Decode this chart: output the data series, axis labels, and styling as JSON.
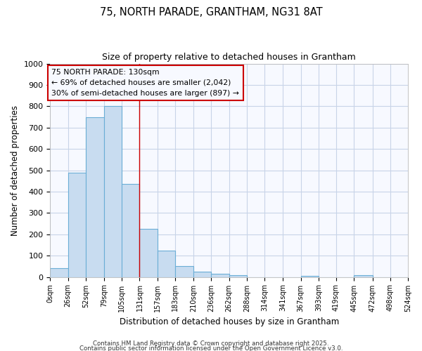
{
  "title_line1": "75, NORTH PARADE, GRANTHAM, NG31 8AT",
  "title_line2": "Size of property relative to detached houses in Grantham",
  "xlabel": "Distribution of detached houses by size in Grantham",
  "ylabel": "Number of detached properties",
  "bin_edges": [
    0,
    26,
    52,
    79,
    105,
    131,
    157,
    183,
    210,
    236,
    262,
    288,
    314,
    341,
    367,
    393,
    419,
    445,
    472,
    498,
    524
  ],
  "bar_heights": [
    40,
    490,
    750,
    800,
    435,
    225,
    125,
    50,
    25,
    15,
    10,
    0,
    0,
    0,
    5,
    0,
    0,
    10,
    0,
    0
  ],
  "bar_facecolor": "#c8dcf0",
  "bar_edgecolor": "#6baed6",
  "property_line_x": 131,
  "property_line_color": "#cc0000",
  "ylim": [
    0,
    1000
  ],
  "yticks": [
    0,
    100,
    200,
    300,
    400,
    500,
    600,
    700,
    800,
    900,
    1000
  ],
  "annotation_title": "75 NORTH PARADE: 130sqm",
  "annotation_line1": "← 69% of detached houses are smaller (2,042)",
  "annotation_line2": "30% of semi-detached houses are larger (897) →",
  "annotation_box_color": "#cc0000",
  "footer_line1": "Contains HM Land Registry data © Crown copyright and database right 2025.",
  "footer_line2": "Contains public sector information licensed under the Open Government Licence v3.0.",
  "background_color": "#ffffff",
  "axes_bg_color": "#f7f9ff",
  "grid_color": "#c8d4e8"
}
